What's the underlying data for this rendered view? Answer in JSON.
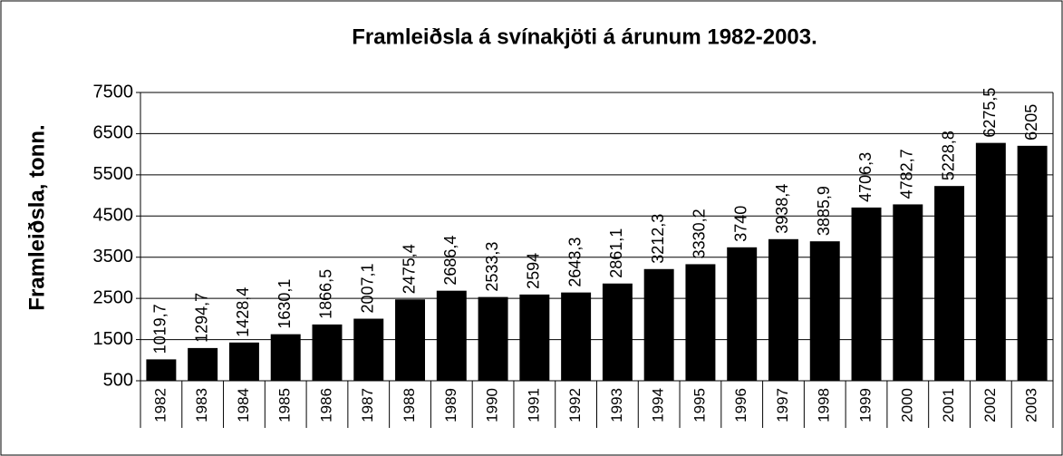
{
  "chart_data": {
    "type": "bar",
    "title": "Framleiðsla á svínakjöti á árunum 1982-2003.",
    "y_label": "Framleiðsla, tonn.",
    "categories": [
      "1982",
      "1983",
      "1984",
      "1985",
      "1986",
      "1987",
      "1988",
      "1989",
      "1990",
      "1991",
      "1992",
      "1993",
      "1994",
      "1995",
      "1996",
      "1997",
      "1998",
      "1999",
      "2000",
      "2001",
      "2002",
      "2003"
    ],
    "values": [
      1019.7,
      1294.7,
      1428.4,
      1630.1,
      1866.5,
      2007.1,
      2475.4,
      2686.4,
      2533.3,
      2594,
      2643.3,
      2861.1,
      3212.3,
      3330.2,
      3740,
      3938.4,
      3885.9,
      4706.3,
      4782.7,
      5228.8,
      6275.5,
      6205
    ],
    "value_labels": [
      "1019,7",
      "1294,7",
      "1428,4",
      "1630,1",
      "1866,5",
      "2007,1",
      "2475,4",
      "2686,4",
      "2533,3",
      "2594",
      "2643,3",
      "2861,1",
      "3212,3",
      "3330,2",
      "3740",
      "3938,4",
      "3885,9",
      "4706,3",
      "4782,7",
      "5228,8",
      "6275,5",
      "6205"
    ],
    "color": "#000000",
    "ylim": [
      500,
      7500
    ],
    "yticks": [
      500,
      1500,
      2500,
      3500,
      4500,
      5500,
      6500,
      7500
    ],
    "grid": true
  }
}
